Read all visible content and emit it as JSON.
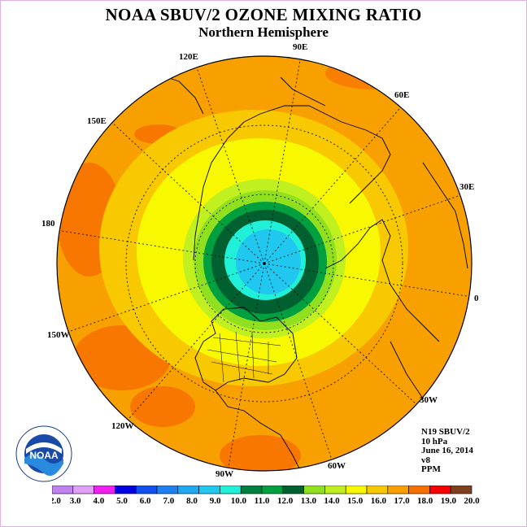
{
  "title": "NOAA SBUV/2 OZONE MIXING RATIO",
  "subtitle": "Northern Hemisphere",
  "longitude_labels": [
    "90E",
    "60E",
    "30E",
    "0",
    "30W",
    "60W",
    "90W",
    "120W",
    "150W",
    "180",
    "150E",
    "120E"
  ],
  "info": {
    "instrument": "N19 SBUV/2",
    "level": "10 hPa",
    "date": "June 16, 2014",
    "version": "v8",
    "units": "PPM"
  },
  "colorbar": {
    "ticks": [
      "2.0",
      "3.0",
      "4.0",
      "5.0",
      "6.0",
      "7.0",
      "8.0",
      "9.0",
      "10.0",
      "11.0",
      "12.0",
      "13.0",
      "14.0",
      "15.0",
      "16.0",
      "17.0",
      "18.0",
      "19.0",
      "20.0"
    ],
    "colors": [
      "#c080f0",
      "#e0a0f8",
      "#f020f0",
      "#0000e0",
      "#1050f0",
      "#2080f0",
      "#20a8f0",
      "#20c8f0",
      "#20f0d8",
      "#008040",
      "#00a040",
      "#006030",
      "#90e020",
      "#c0f020",
      "#f8f800",
      "#f8c800",
      "#f8a000",
      "#f87000",
      "#f80000",
      "#804020"
    ]
  },
  "logo": {
    "text": "NOAA",
    "ring_text": "NATIONAL OCEANIC AND ATMOSPHERIC ADMINISTRATION · U.S. DEPARTMENT OF COMMERCE"
  }
}
